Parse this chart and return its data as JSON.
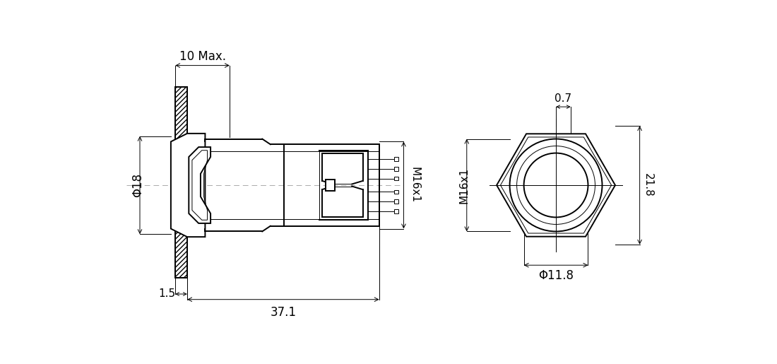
{
  "bg_color": "#ffffff",
  "line_color": "#000000",
  "centerline_color": "#aaaaaa",
  "lw": 1.4,
  "thin_lw": 0.7,
  "annotations": {
    "dim_10max_text": "10 Max.",
    "dim_18_text": "Φ18",
    "dim_15_text": "1.5",
    "dim_371_text": "37.1",
    "dim_m16x1_text": "M16x1",
    "dim_07_text": "0.7",
    "dim_218_text": "21.8",
    "dim_118_text": "Φ11.8"
  }
}
